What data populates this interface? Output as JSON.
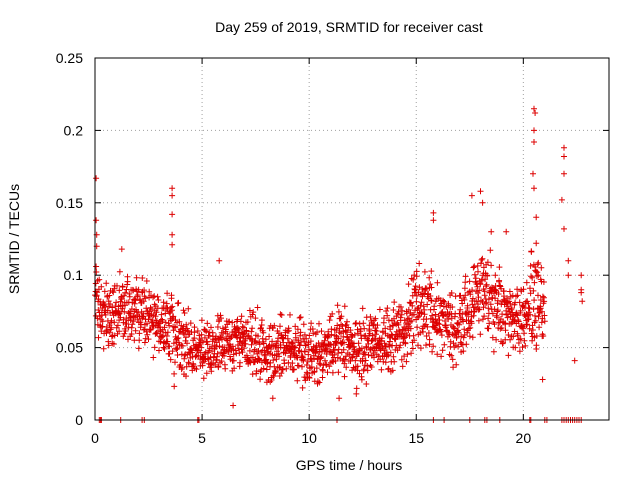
{
  "chart_data": {
    "type": "scatter",
    "title": "Day 259 of 2019, SRMTID for receiver cast",
    "xlabel": "GPS time / hours",
    "ylabel": "SRMTID / TECUs",
    "xlim": [
      0,
      24
    ],
    "ylim": [
      0,
      0.25
    ],
    "x_ticks": [
      0,
      5,
      10,
      15,
      20
    ],
    "x_tick_labels": [
      "0",
      "5",
      "10",
      "15",
      "20"
    ],
    "y_ticks": [
      0,
      0.05,
      0.1,
      0.15,
      0.2,
      0.25
    ],
    "y_tick_labels": [
      "0",
      "0.05",
      "0.1",
      "0.15",
      "0.2",
      "0.25"
    ],
    "grid": true,
    "marker": "+",
    "series": [
      {
        "name": "SRMTID",
        "color": "#dd0000",
        "envelope": {
          "x": [
            0.0,
            0.5,
            1.0,
            1.5,
            2.0,
            2.5,
            3.0,
            3.5,
            4.0,
            4.5,
            5.0,
            5.5,
            6.0,
            6.5,
            7.0,
            7.5,
            8.0,
            8.5,
            9.0,
            9.5,
            10.0,
            10.5,
            11.0,
            11.5,
            12.0,
            12.5,
            13.0,
            13.5,
            14.0,
            14.5,
            15.0,
            15.5,
            16.0,
            16.5,
            17.0,
            17.5,
            18.0,
            18.5,
            19.0,
            19.5,
            20.0,
            20.5,
            21.0
          ],
          "center": [
            0.085,
            0.07,
            0.075,
            0.078,
            0.076,
            0.07,
            0.062,
            0.062,
            0.055,
            0.052,
            0.048,
            0.05,
            0.052,
            0.05,
            0.055,
            0.05,
            0.048,
            0.05,
            0.05,
            0.047,
            0.045,
            0.045,
            0.05,
            0.055,
            0.05,
            0.048,
            0.052,
            0.055,
            0.06,
            0.065,
            0.08,
            0.075,
            0.075,
            0.065,
            0.065,
            0.075,
            0.09,
            0.085,
            0.075,
            0.068,
            0.07,
            0.09,
            0.07
          ],
          "spread": [
            0.02,
            0.018,
            0.02,
            0.02,
            0.02,
            0.02,
            0.02,
            0.025,
            0.022,
            0.02,
            0.018,
            0.018,
            0.02,
            0.018,
            0.02,
            0.02,
            0.02,
            0.02,
            0.02,
            0.02,
            0.018,
            0.018,
            0.02,
            0.02,
            0.02,
            0.02,
            0.02,
            0.02,
            0.02,
            0.022,
            0.025,
            0.025,
            0.025,
            0.02,
            0.02,
            0.025,
            0.03,
            0.03,
            0.025,
            0.02,
            0.02,
            0.03,
            0.025
          ]
        },
        "highlighted_points": [
          {
            "x": 0.05,
            "y": 0.167
          },
          {
            "x": 0.05,
            "y": 0.138
          },
          {
            "x": 0.08,
            "y": 0.128
          },
          {
            "x": 0.08,
            "y": 0.12
          },
          {
            "x": 0.05,
            "y": 0.106
          },
          {
            "x": 1.25,
            "y": 0.118
          },
          {
            "x": 3.6,
            "y": 0.16
          },
          {
            "x": 3.6,
            "y": 0.155
          },
          {
            "x": 3.6,
            "y": 0.142
          },
          {
            "x": 3.6,
            "y": 0.128
          },
          {
            "x": 3.6,
            "y": 0.121
          },
          {
            "x": 5.8,
            "y": 0.11
          },
          {
            "x": 6.45,
            "y": 0.01
          },
          {
            "x": 15.8,
            "y": 0.143
          },
          {
            "x": 15.8,
            "y": 0.138
          },
          {
            "x": 17.6,
            "y": 0.155
          },
          {
            "x": 18.0,
            "y": 0.158
          },
          {
            "x": 18.1,
            "y": 0.15
          },
          {
            "x": 18.5,
            "y": 0.13
          },
          {
            "x": 19.2,
            "y": 0.13
          },
          {
            "x": 20.5,
            "y": 0.215
          },
          {
            "x": 20.55,
            "y": 0.212
          },
          {
            "x": 20.5,
            "y": 0.2
          },
          {
            "x": 20.5,
            "y": 0.192
          },
          {
            "x": 20.45,
            "y": 0.17
          },
          {
            "x": 20.5,
            "y": 0.16
          },
          {
            "x": 20.6,
            "y": 0.14
          },
          {
            "x": 20.6,
            "y": 0.122
          },
          {
            "x": 20.9,
            "y": 0.028
          },
          {
            "x": 21.9,
            "y": 0.188
          },
          {
            "x": 21.9,
            "y": 0.182
          },
          {
            "x": 21.9,
            "y": 0.17
          },
          {
            "x": 21.8,
            "y": 0.152
          },
          {
            "x": 21.9,
            "y": 0.132
          },
          {
            "x": 22.1,
            "y": 0.11
          },
          {
            "x": 22.1,
            "y": 0.1
          },
          {
            "x": 22.4,
            "y": 0.041
          },
          {
            "x": 22.7,
            "y": 0.1
          },
          {
            "x": 22.7,
            "y": 0.09
          },
          {
            "x": 22.7,
            "y": 0.088
          },
          {
            "x": 22.75,
            "y": 0.082
          },
          {
            "x": 11.4,
            "y": 0.015
          },
          {
            "x": 12.2,
            "y": 0.018
          },
          {
            "x": 8.3,
            "y": 0.015
          },
          {
            "x": 2.2,
            "y": 0.088
          }
        ],
        "zero_points_x": [
          0.2,
          0.25,
          0.3,
          1.2,
          2.2,
          2.3,
          4.8,
          4.85,
          11.3,
          15.8,
          16.3,
          17.5,
          18.2,
          18.3,
          18.9,
          20.3,
          20.35,
          21.0,
          21.1,
          21.8,
          21.9,
          22.0,
          22.1,
          22.2,
          22.3,
          22.4,
          22.5,
          22.6,
          22.7
        ]
      }
    ]
  }
}
